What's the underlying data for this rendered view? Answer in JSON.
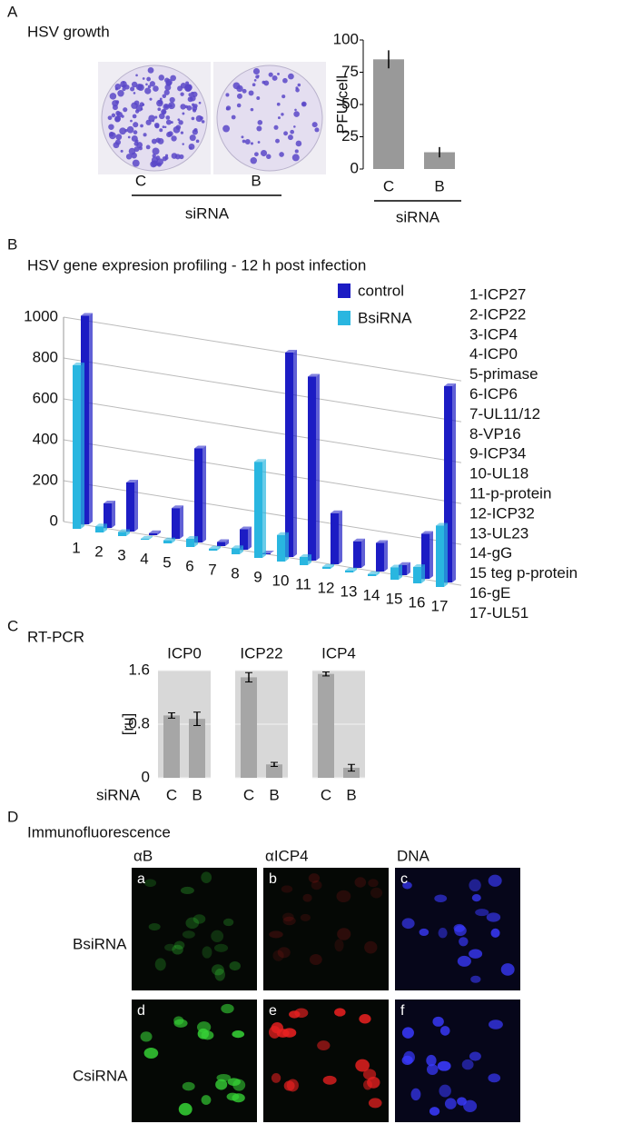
{
  "panel_labels": [
    "A",
    "B",
    "C",
    "D"
  ],
  "growth": {
    "title": "HSV growth",
    "plates": [
      "C",
      "B"
    ],
    "group": "siRNA"
  },
  "chart_data": [
    {
      "type": "bar",
      "categories": [
        "C",
        "B"
      ],
      "values": [
        85,
        13
      ],
      "errors": [
        7,
        4
      ],
      "color": "#999999",
      "ylabel": "PFU/cell",
      "xlabel": "siRNA",
      "ylim": [
        0,
        100
      ],
      "yticks": [
        0,
        25,
        50,
        75,
        100
      ]
    },
    {
      "type": "bar3d",
      "title": "HSV gene expresion profiling - 12 h post infection",
      "categories": [
        "1",
        "2",
        "3",
        "4",
        "5",
        "6",
        "7",
        "8",
        "9",
        "10",
        "11",
        "12",
        "13",
        "14",
        "15",
        "16",
        "17"
      ],
      "series": [
        {
          "name": "control",
          "color": "#1c1cc4",
          "values": [
            1020,
            120,
            240,
            10,
            150,
            460,
            20,
            100,
            0,
            1000,
            900,
            250,
            130,
            140,
            50,
            220,
            960
          ]
        },
        {
          "name": "BsiRNA",
          "color": "#29b6e0",
          "values": [
            800,
            30,
            20,
            5,
            15,
            40,
            10,
            30,
            470,
            130,
            40,
            10,
            10,
            10,
            60,
            80,
            300
          ]
        }
      ],
      "ylim": [
        0,
        1000
      ],
      "yticks": [
        0,
        200,
        400,
        600,
        800,
        1000
      ],
      "grid": true,
      "legend": "top-right",
      "key": [
        "1-ICP27",
        "2-ICP22",
        "3-ICP4",
        "4-ICP0",
        "5-primase",
        "6-ICP6",
        "7-UL11/12",
        "8-VP16",
        "9-ICP34",
        "10-UL18",
        "11-p-protein",
        "12-ICP32",
        "13-UL23",
        "14-gG",
        "15 teg p-protein",
        "16-gE",
        "17-UL51"
      ]
    },
    {
      "type": "facets",
      "title": "RT-PCR",
      "ylabel": "[ru]",
      "xlabel": "siRNA",
      "categories": [
        "C",
        "B"
      ],
      "ylim": [
        0,
        1.6
      ],
      "yticks": [
        0,
        0.8,
        1.6
      ],
      "color": "#a6a6a6",
      "facets": [
        {
          "title": "ICP0",
          "values": [
            0.93,
            0.88
          ],
          "errors": [
            0.04,
            0.1
          ]
        },
        {
          "title": "ICP22",
          "values": [
            1.5,
            0.2
          ],
          "errors": [
            0.07,
            0.03
          ]
        },
        {
          "title": "ICP4",
          "values": [
            1.55,
            0.15
          ],
          "errors": [
            0.03,
            0.05
          ]
        }
      ]
    }
  ],
  "immunofluorescence": {
    "title": "Immunofluorescence",
    "columns": [
      "αB",
      "αICP4",
      "DNA"
    ],
    "rows": [
      "BsiRNA",
      "CsiRNA"
    ],
    "tiles": [
      [
        "a",
        "b",
        "c"
      ],
      [
        "d",
        "e",
        "f"
      ]
    ]
  }
}
